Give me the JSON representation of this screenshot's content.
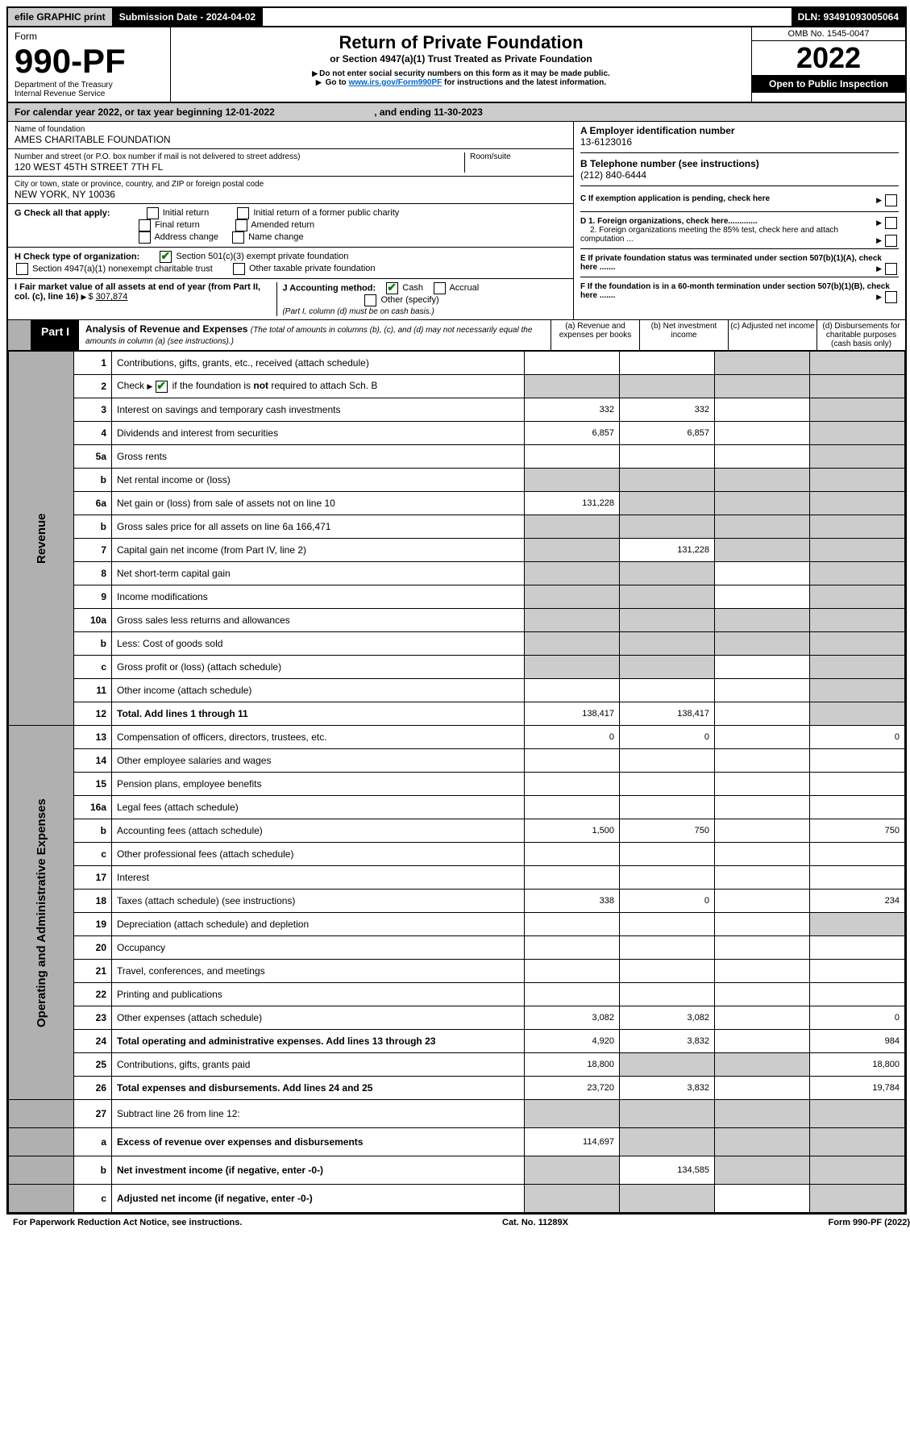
{
  "topbar": {
    "efile": "efile GRAPHIC print",
    "sub_label": "Submission Date - 2024-04-02",
    "dln": "DLN: 93491093005064"
  },
  "header": {
    "form_label": "Form",
    "form_no": "990-PF",
    "dept": "Department of the Treasury",
    "irs": "Internal Revenue Service",
    "title": "Return of Private Foundation",
    "subtitle": "or Section 4947(a)(1) Trust Treated as Private Foundation",
    "note1": "Do not enter social security numbers on this form as it may be made public.",
    "note2_pre": "Go to ",
    "note2_link": "www.irs.gov/Form990PF",
    "note2_post": " for instructions and the latest information.",
    "omb": "OMB No. 1545-0047",
    "year": "2022",
    "open": "Open to Public Inspection"
  },
  "calyear": {
    "pre": "For calendar year 2022, or tax year beginning ",
    "begin": "12-01-2022",
    "mid": " , and ending ",
    "end": "11-30-2023"
  },
  "foundation": {
    "name_lbl": "Name of foundation",
    "name": "AMES CHARITABLE FOUNDATION",
    "addr_lbl": "Number and street (or P.O. box number if mail is not delivered to street address)",
    "addr": "120 WEST 45TH STREET 7TH FL",
    "room_lbl": "Room/suite",
    "city_lbl": "City or town, state or province, country, and ZIP or foreign postal code",
    "city": "NEW YORK, NY  10036",
    "A_lbl": "A Employer identification number",
    "A_val": "13-6123016",
    "B_lbl": "B Telephone number (see instructions)",
    "B_val": "(212) 840-6444",
    "C_lbl": "C If exemption application is pending, check here",
    "D1_lbl": "D 1. Foreign organizations, check here.............",
    "D2_lbl": "2. Foreign organizations meeting the 85% test, check here and attach computation ...",
    "E_lbl": "E  If private foundation status was terminated under section 507(b)(1)(A), check here .......",
    "F_lbl": "F  If the foundation is in a 60-month termination under section 507(b)(1)(B), check here ......."
  },
  "G": {
    "lbl": "G Check all that apply:",
    "o1": "Initial return",
    "o2": "Final return",
    "o3": "Address change",
    "o4": "Initial return of a former public charity",
    "o5": "Amended return",
    "o6": "Name change"
  },
  "H": {
    "lbl": "H Check type of organization:",
    "o1": "Section 501(c)(3) exempt private foundation",
    "o2": "Section 4947(a)(1) nonexempt charitable trust",
    "o3": "Other taxable private foundation"
  },
  "I": {
    "lbl": "I Fair market value of all assets at end of year (from Part II, col. (c), line 16)",
    "val": "307,874"
  },
  "J": {
    "lbl": "J Accounting method:",
    "o1": "Cash",
    "o2": "Accrual",
    "o3": "Other (specify)",
    "note": "(Part I, column (d) must be on cash basis.)"
  },
  "part1": {
    "label": "Part I",
    "title": "Analysis of Revenue and Expenses",
    "title_note": " (The total of amounts in columns (b), (c), and (d) may not necessarily equal the amounts in column (a) (see instructions).)",
    "col_a": "(a) Revenue and expenses per books",
    "col_b": "(b) Net investment income",
    "col_c": "(c) Adjusted net income",
    "col_d": "(d) Disbursements for charitable purposes (cash basis only)"
  },
  "sections": {
    "rev": "Revenue",
    "exp": "Operating and Administrative Expenses"
  },
  "rows": [
    {
      "sec": "rev",
      "ln": "1",
      "desc": "Contributions, gifts, grants, etc., received (attach schedule)",
      "a": "",
      "b": "",
      "c": "g",
      "d": "g"
    },
    {
      "sec": "rev",
      "ln": "2",
      "desc": "Check ▶ ☑ if the foundation is not required to attach Sch. B",
      "a": "g",
      "b": "g",
      "c": "g",
      "d": "g",
      "checked": true
    },
    {
      "sec": "rev",
      "ln": "3",
      "desc": "Interest on savings and temporary cash investments",
      "a": "332",
      "b": "332",
      "c": "",
      "d": "g"
    },
    {
      "sec": "rev",
      "ln": "4",
      "desc": "Dividends and interest from securities",
      "a": "6,857",
      "b": "6,857",
      "c": "",
      "d": "g"
    },
    {
      "sec": "rev",
      "ln": "5a",
      "desc": "Gross rents",
      "a": "",
      "b": "",
      "c": "",
      "d": "g"
    },
    {
      "sec": "rev",
      "ln": "b",
      "desc": "Net rental income or (loss)",
      "a": "g",
      "b": "g",
      "c": "g",
      "d": "g"
    },
    {
      "sec": "rev",
      "ln": "6a",
      "desc": "Net gain or (loss) from sale of assets not on line 10",
      "a": "131,228",
      "b": "g",
      "c": "g",
      "d": "g"
    },
    {
      "sec": "rev",
      "ln": "b",
      "desc": "Gross sales price for all assets on line 6a            166,471",
      "a": "g",
      "b": "g",
      "c": "g",
      "d": "g"
    },
    {
      "sec": "rev",
      "ln": "7",
      "desc": "Capital gain net income (from Part IV, line 2)",
      "a": "g",
      "b": "131,228",
      "c": "g",
      "d": "g"
    },
    {
      "sec": "rev",
      "ln": "8",
      "desc": "Net short-term capital gain",
      "a": "g",
      "b": "g",
      "c": "",
      "d": "g"
    },
    {
      "sec": "rev",
      "ln": "9",
      "desc": "Income modifications",
      "a": "g",
      "b": "g",
      "c": "",
      "d": "g"
    },
    {
      "sec": "rev",
      "ln": "10a",
      "desc": "Gross sales less returns and allowances",
      "a": "g",
      "b": "g",
      "c": "g",
      "d": "g"
    },
    {
      "sec": "rev",
      "ln": "b",
      "desc": "Less: Cost of goods sold",
      "a": "g",
      "b": "g",
      "c": "g",
      "d": "g"
    },
    {
      "sec": "rev",
      "ln": "c",
      "desc": "Gross profit or (loss) (attach schedule)",
      "a": "g",
      "b": "g",
      "c": "",
      "d": "g"
    },
    {
      "sec": "rev",
      "ln": "11",
      "desc": "Other income (attach schedule)",
      "a": "",
      "b": "",
      "c": "",
      "d": "g"
    },
    {
      "sec": "rev",
      "ln": "12",
      "desc": "Total. Add lines 1 through 11",
      "a": "138,417",
      "b": "138,417",
      "c": "",
      "d": "g",
      "bold": true
    },
    {
      "sec": "exp",
      "ln": "13",
      "desc": "Compensation of officers, directors, trustees, etc.",
      "a": "0",
      "b": "0",
      "c": "",
      "d": "0"
    },
    {
      "sec": "exp",
      "ln": "14",
      "desc": "Other employee salaries and wages",
      "a": "",
      "b": "",
      "c": "",
      "d": ""
    },
    {
      "sec": "exp",
      "ln": "15",
      "desc": "Pension plans, employee benefits",
      "a": "",
      "b": "",
      "c": "",
      "d": ""
    },
    {
      "sec": "exp",
      "ln": "16a",
      "desc": "Legal fees (attach schedule)",
      "a": "",
      "b": "",
      "c": "",
      "d": ""
    },
    {
      "sec": "exp",
      "ln": "b",
      "desc": "Accounting fees (attach schedule)",
      "a": "1,500",
      "b": "750",
      "c": "",
      "d": "750"
    },
    {
      "sec": "exp",
      "ln": "c",
      "desc": "Other professional fees (attach schedule)",
      "a": "",
      "b": "",
      "c": "",
      "d": ""
    },
    {
      "sec": "exp",
      "ln": "17",
      "desc": "Interest",
      "a": "",
      "b": "",
      "c": "",
      "d": ""
    },
    {
      "sec": "exp",
      "ln": "18",
      "desc": "Taxes (attach schedule) (see instructions)",
      "a": "338",
      "b": "0",
      "c": "",
      "d": "234"
    },
    {
      "sec": "exp",
      "ln": "19",
      "desc": "Depreciation (attach schedule) and depletion",
      "a": "",
      "b": "",
      "c": "",
      "d": "g"
    },
    {
      "sec": "exp",
      "ln": "20",
      "desc": "Occupancy",
      "a": "",
      "b": "",
      "c": "",
      "d": ""
    },
    {
      "sec": "exp",
      "ln": "21",
      "desc": "Travel, conferences, and meetings",
      "a": "",
      "b": "",
      "c": "",
      "d": ""
    },
    {
      "sec": "exp",
      "ln": "22",
      "desc": "Printing and publications",
      "a": "",
      "b": "",
      "c": "",
      "d": ""
    },
    {
      "sec": "exp",
      "ln": "23",
      "desc": "Other expenses (attach schedule)",
      "a": "3,082",
      "b": "3,082",
      "c": "",
      "d": "0"
    },
    {
      "sec": "exp",
      "ln": "24",
      "desc": "Total operating and administrative expenses. Add lines 13 through 23",
      "a": "4,920",
      "b": "3,832",
      "c": "",
      "d": "984",
      "bold": true
    },
    {
      "sec": "exp",
      "ln": "25",
      "desc": "Contributions, gifts, grants paid",
      "a": "18,800",
      "b": "g",
      "c": "g",
      "d": "18,800"
    },
    {
      "sec": "exp",
      "ln": "26",
      "desc": "Total expenses and disbursements. Add lines 24 and 25",
      "a": "23,720",
      "b": "3,832",
      "c": "",
      "d": "19,784",
      "bold": true
    },
    {
      "sec": "",
      "ln": "27",
      "desc": "Subtract line 26 from line 12:",
      "a": "g",
      "b": "g",
      "c": "g",
      "d": "g"
    },
    {
      "sec": "",
      "ln": "a",
      "desc": "Excess of revenue over expenses and disbursements",
      "a": "114,697",
      "b": "g",
      "c": "g",
      "d": "g",
      "bold": true
    },
    {
      "sec": "",
      "ln": "b",
      "desc": "Net investment income (if negative, enter -0-)",
      "a": "g",
      "b": "134,585",
      "c": "g",
      "d": "g",
      "bold": true
    },
    {
      "sec": "",
      "ln": "c",
      "desc": "Adjusted net income (if negative, enter -0-)",
      "a": "g",
      "b": "g",
      "c": "",
      "d": "g",
      "bold": true
    }
  ],
  "footer": {
    "left": "For Paperwork Reduction Act Notice, see instructions.",
    "mid": "Cat. No. 11289X",
    "right": "Form 990-PF (2022)"
  }
}
